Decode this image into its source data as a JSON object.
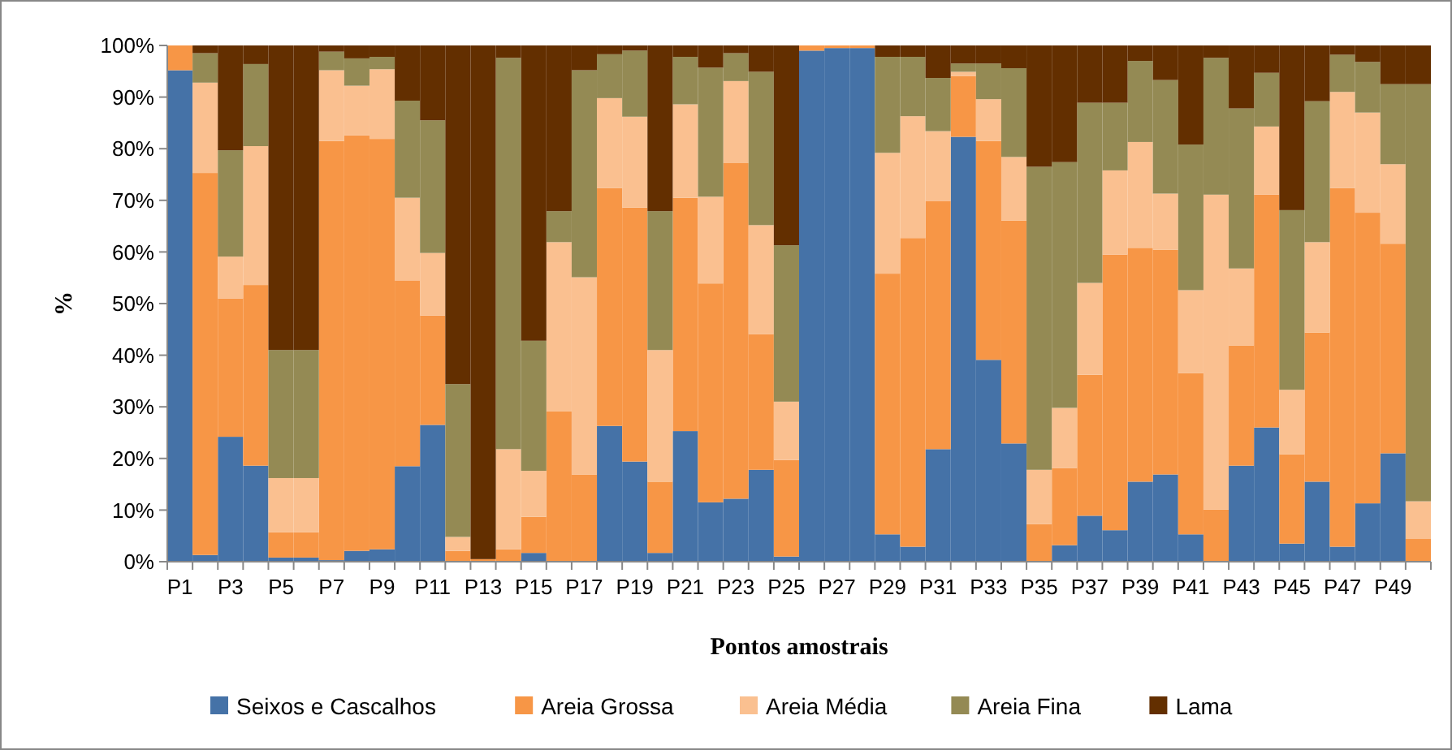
{
  "chart_data": {
    "type": "bar",
    "stacked": true,
    "xlabel": "Pontos amostrais",
    "ylabel": "%",
    "categories": [
      "P1",
      null,
      "P3",
      null,
      "P5",
      null,
      "P7",
      null,
      "P9",
      null,
      "P11",
      null,
      "P13",
      null,
      "P15",
      null,
      "P17",
      null,
      "P19",
      null,
      "P21",
      null,
      "P23",
      null,
      "P25",
      null,
      "P27",
      null,
      "P29",
      null,
      "P31",
      null,
      "P33",
      null,
      "P35",
      null,
      "P37",
      null,
      "P39",
      null,
      "P41",
      null,
      "P43",
      null,
      "P45",
      null,
      "P47",
      null,
      "P49",
      null
    ],
    "ylim": [
      0,
      100
    ],
    "yticks": [
      {
        "value": 0,
        "label": "0%"
      },
      {
        "value": 10,
        "label": "10%"
      },
      {
        "value": 20,
        "label": "20%"
      },
      {
        "value": 30,
        "label": "30%"
      },
      {
        "value": 40,
        "label": "40%"
      },
      {
        "value": 50,
        "label": "50%"
      },
      {
        "value": 60,
        "label": "60%"
      },
      {
        "value": 70,
        "label": "70%"
      },
      {
        "value": 80,
        "label": "80%"
      },
      {
        "value": 90,
        "label": "90%"
      },
      {
        "value": 100,
        "label": "100%"
      }
    ],
    "legend": "bottom",
    "series": [
      {
        "name": "Seixos e Cascalhos",
        "color": "#4572a7",
        "values": [
          95.2,
          1.3,
          24.2,
          18.6,
          0.8,
          0.8,
          0.3,
          2.1,
          2.4,
          18.5,
          26.5,
          0,
          0,
          0,
          1.7,
          0,
          0,
          26.3,
          19.4,
          1.7,
          25.3,
          11.5,
          12.2,
          17.8,
          1,
          99,
          99.5,
          99.5,
          5.3,
          2.9,
          21.8,
          82.3,
          39.1,
          22.9,
          0,
          3.2,
          8.9,
          6.1,
          15.5,
          16.9,
          5.3,
          0,
          18.6,
          26,
          3.5,
          15.5,
          2.9,
          11.3,
          21,
          0
        ]
      },
      {
        "name": "Areia Grossa",
        "color": "#f79646",
        "values": [
          4.8,
          74,
          26.8,
          35,
          4.9,
          4.9,
          81.2,
          80.5,
          79.5,
          36,
          21.2,
          2.1,
          0.5,
          2.4,
          7,
          29.1,
          16.9,
          46.1,
          49.2,
          13.8,
          45.2,
          42.4,
          65,
          26.3,
          18.7,
          1,
          0.5,
          0.5,
          50.5,
          59.8,
          48.1,
          11.8,
          42.4,
          43.2,
          7.3,
          14.9,
          27.3,
          53.4,
          45.3,
          43.5,
          31.2,
          10.1,
          23.3,
          45.1,
          17.3,
          28.9,
          69.5,
          56.3,
          40.6,
          4.4
        ]
      },
      {
        "name": "Areia Média",
        "color": "#fac090",
        "values": [
          0,
          17.5,
          8.1,
          26.9,
          10.5,
          10.5,
          13.7,
          9.6,
          13.5,
          16,
          12.1,
          2.7,
          0,
          19.4,
          8.9,
          32.8,
          38.2,
          17.4,
          17.6,
          25.5,
          18.1,
          16.8,
          15.9,
          21.1,
          11.3,
          0,
          0,
          0,
          23.4,
          23.6,
          13.5,
          0.8,
          8.1,
          12.3,
          10.5,
          11.7,
          17.8,
          16.3,
          20.5,
          10.9,
          16.1,
          61,
          14.9,
          13.2,
          12.5,
          17.5,
          18.6,
          19.4,
          15.4,
          7.3
        ]
      },
      {
        "name": "Areia Fina",
        "color": "#948a54",
        "values": [
          0,
          5.7,
          20.6,
          15.9,
          24.8,
          24.8,
          3.6,
          5.3,
          2.4,
          18.8,
          25.7,
          29.6,
          0,
          75.8,
          25.2,
          6,
          40.1,
          8.5,
          12.8,
          26.9,
          9.2,
          25,
          5.4,
          29.7,
          30.3,
          0,
          0,
          0,
          18.6,
          11.5,
          10.3,
          1.6,
          6.9,
          17.2,
          58.7,
          47.6,
          34.9,
          13.1,
          15.7,
          22,
          28.2,
          26.5,
          31,
          10.4,
          34.8,
          27.3,
          7.2,
          9.8,
          15.5,
          80.8
        ]
      },
      {
        "name": "Lama",
        "color": "#632f00",
        "values": [
          0,
          1.5,
          20.3,
          3.6,
          59,
          59,
          1.2,
          2.5,
          2.2,
          10.7,
          14.5,
          65.6,
          99.5,
          2.4,
          57.2,
          32.1,
          4.8,
          1.7,
          1,
          32.1,
          2.2,
          4.3,
          1.5,
          5.1,
          38.7,
          0,
          0,
          0,
          2.2,
          2.2,
          6.3,
          3.5,
          3.5,
          4.4,
          23.5,
          22.6,
          11.1,
          11.1,
          3,
          6.7,
          19.2,
          2.4,
          12.2,
          5.3,
          31.9,
          10.8,
          1.8,
          3.2,
          7.5,
          7.5
        ]
      }
    ]
  }
}
